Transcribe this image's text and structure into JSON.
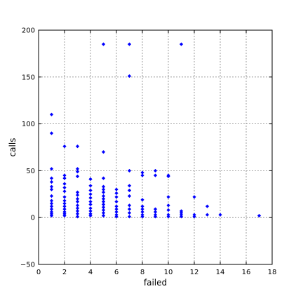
{
  "chart_data": {
    "type": "scatter",
    "title": "",
    "xlabel": "failed",
    "ylabel": "calls",
    "xlim": [
      0,
      18
    ],
    "ylim": [
      -50,
      200
    ],
    "xticks": [
      0,
      2,
      4,
      6,
      8,
      10,
      12,
      14,
      16,
      18
    ],
    "yticks": [
      -50,
      0,
      50,
      100,
      150,
      200
    ],
    "grid": true,
    "marker_color": "#0000ff",
    "series": [
      {
        "points": [
          [
            1,
            110
          ],
          [
            1,
            90
          ],
          [
            1,
            52
          ],
          [
            1,
            42
          ],
          [
            1,
            38
          ],
          [
            1,
            33
          ],
          [
            1,
            30
          ],
          [
            1,
            23
          ],
          [
            1,
            18
          ],
          [
            1,
            15
          ],
          [
            1,
            12
          ],
          [
            1,
            9
          ],
          [
            1,
            6
          ],
          [
            1,
            4
          ],
          [
            1,
            2
          ],
          [
            2,
            76
          ],
          [
            2,
            45
          ],
          [
            2,
            42
          ],
          [
            2,
            36
          ],
          [
            2,
            32
          ],
          [
            2,
            28
          ],
          [
            2,
            22
          ],
          [
            2,
            18
          ],
          [
            2,
            15
          ],
          [
            2,
            12
          ],
          [
            2,
            9
          ],
          [
            2,
            6
          ],
          [
            2,
            4
          ],
          [
            2,
            2
          ],
          [
            3,
            76
          ],
          [
            3,
            52
          ],
          [
            3,
            49
          ],
          [
            3,
            44
          ],
          [
            3,
            27
          ],
          [
            3,
            24
          ],
          [
            3,
            20
          ],
          [
            3,
            17
          ],
          [
            3,
            13
          ],
          [
            3,
            10
          ],
          [
            3,
            7
          ],
          [
            3,
            4
          ],
          [
            3,
            1
          ],
          [
            4,
            41
          ],
          [
            4,
            34
          ],
          [
            4,
            29
          ],
          [
            4,
            25
          ],
          [
            4,
            21
          ],
          [
            4,
            17
          ],
          [
            4,
            14
          ],
          [
            4,
            10
          ],
          [
            4,
            7
          ],
          [
            4,
            4
          ],
          [
            4,
            2
          ],
          [
            5,
            185
          ],
          [
            5,
            70
          ],
          [
            5,
            42
          ],
          [
            5,
            33
          ],
          [
            5,
            30
          ],
          [
            5,
            27
          ],
          [
            5,
            23
          ],
          [
            5,
            20
          ],
          [
            5,
            17
          ],
          [
            5,
            14
          ],
          [
            5,
            11
          ],
          [
            5,
            8
          ],
          [
            5,
            5
          ],
          [
            5,
            2
          ],
          [
            6,
            30
          ],
          [
            6,
            26
          ],
          [
            6,
            22
          ],
          [
            6,
            17
          ],
          [
            6,
            12
          ],
          [
            6,
            9
          ],
          [
            6,
            6
          ],
          [
            6,
            3
          ],
          [
            6,
            1
          ],
          [
            7,
            185
          ],
          [
            7,
            151
          ],
          [
            7,
            50
          ],
          [
            7,
            34
          ],
          [
            7,
            29
          ],
          [
            7,
            23
          ],
          [
            7,
            13
          ],
          [
            7,
            9
          ],
          [
            7,
            5
          ],
          [
            7,
            1
          ],
          [
            8,
            48
          ],
          [
            8,
            45
          ],
          [
            8,
            19
          ],
          [
            8,
            12
          ],
          [
            8,
            9
          ],
          [
            8,
            6
          ],
          [
            8,
            3
          ],
          [
            8,
            1
          ],
          [
            9,
            50
          ],
          [
            9,
            45
          ],
          [
            9,
            9
          ],
          [
            9,
            6
          ],
          [
            9,
            3
          ],
          [
            9,
            1
          ],
          [
            10,
            45
          ],
          [
            10,
            44
          ],
          [
            10,
            22
          ],
          [
            10,
            13
          ],
          [
            10,
            8
          ],
          [
            10,
            3
          ],
          [
            10,
            1
          ],
          [
            11,
            185
          ],
          [
            11,
            7
          ],
          [
            11,
            5
          ],
          [
            11,
            3
          ],
          [
            11,
            1
          ],
          [
            12,
            22
          ],
          [
            12,
            3
          ],
          [
            12,
            1
          ],
          [
            13,
            12
          ],
          [
            13,
            3
          ],
          [
            14,
            3
          ],
          [
            17,
            2
          ]
        ]
      }
    ]
  }
}
